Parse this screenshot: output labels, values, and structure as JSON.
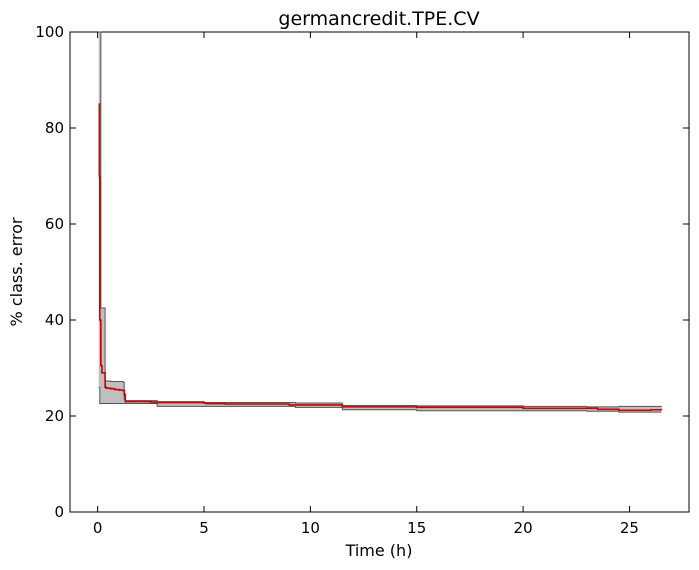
{
  "chart_data": {
    "type": "line",
    "title": "germancredit.TPE.CV",
    "xlabel": "Time (h)",
    "ylabel": "% class. error",
    "xlim": [
      -1.3,
      27.8
    ],
    "ylim": [
      0,
      100
    ],
    "xticks": [
      0,
      5,
      10,
      15,
      20,
      25
    ],
    "yticks": [
      0,
      20,
      40,
      60,
      80,
      100
    ],
    "grid": false,
    "legend": "none",
    "colors": {
      "mean": "#cc0000",
      "band_fill": "#bfbfbf",
      "band_edge": "#555555"
    },
    "series": [
      {
        "role": "mean",
        "x": [
          0.05,
          0.08,
          0.1,
          0.15,
          0.2,
          0.3,
          0.35,
          0.4,
          0.6,
          0.8,
          1.0,
          1.2,
          1.25,
          1.3,
          1.4,
          2.0,
          2.1,
          2.2,
          2.5,
          2.7,
          3.0,
          4.0,
          5.0,
          5.1,
          6.0,
          9.0,
          11.5,
          15.0,
          20.0,
          23.5,
          24.5,
          26.0,
          26.5
        ],
        "y": [
          85.0,
          70.0,
          40.0,
          30.5,
          29.0,
          29.0,
          26.0,
          25.8,
          25.7,
          25.5,
          25.4,
          25.3,
          24.5,
          23.0,
          23.0,
          23.1,
          23.0,
          23.0,
          22.9,
          22.8,
          22.8,
          22.8,
          22.7,
          22.6,
          22.5,
          22.3,
          21.9,
          21.8,
          21.6,
          21.4,
          21.2,
          21.3,
          21.5
        ]
      }
    ],
    "band": {
      "x": [
        0.05,
        0.1,
        0.15,
        0.2,
        0.35,
        0.6,
        1.2,
        1.25,
        1.3,
        2.2,
        2.8,
        5.0,
        9.3,
        11.5,
        15.0,
        20.0,
        23.0,
        24.5,
        26.5
      ],
      "upper": [
        100,
        100,
        42.5,
        42.5,
        27.3,
        27.2,
        27.0,
        23.5,
        23.2,
        23.2,
        23.0,
        22.8,
        22.7,
        22.2,
        22.1,
        22.0,
        21.9,
        22.0,
        22.1
      ],
      "lower": [
        26.0,
        22.6,
        22.6,
        22.6,
        22.6,
        22.6,
        22.6,
        22.6,
        22.6,
        22.6,
        22.0,
        22.0,
        21.8,
        21.3,
        21.1,
        21.1,
        21.0,
        20.8,
        20.8
      ]
    }
  }
}
